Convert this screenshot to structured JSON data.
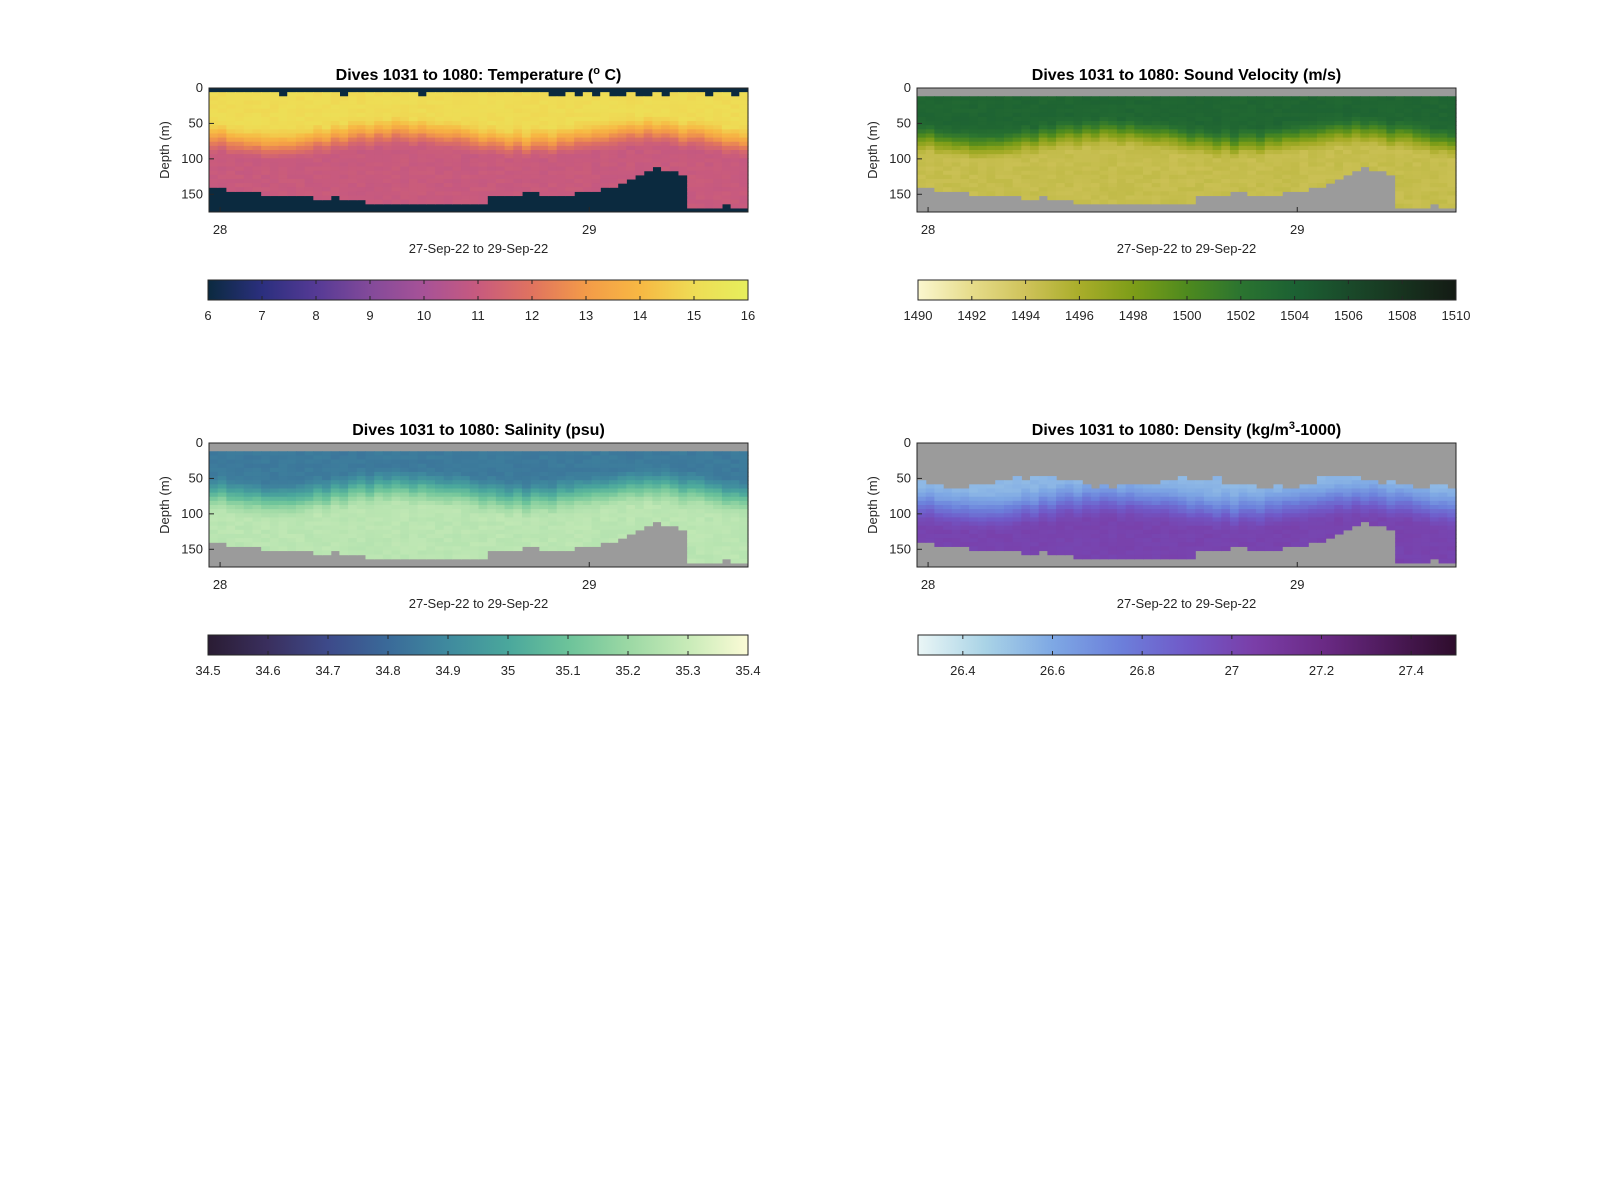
{
  "figure": {
    "background": "#ffffff",
    "mask_color": "#9b9b9b"
  },
  "chart_data": [
    {
      "type": "heatmap",
      "id": "temperature",
      "title": "Dives 1031 to 1080: Temperature (",
      "title_sup": "o",
      "title_end": " C)",
      "ylabel": "Depth (m)",
      "xlabel": "27-Sep-22 to 29-Sep-22",
      "ylim": [
        0,
        175
      ],
      "y_reversed": true,
      "yticks": [
        0,
        50,
        100,
        150
      ],
      "xlim_days": [
        27.97,
        29.43
      ],
      "xticks": [
        {
          "value": 28,
          "label": "28"
        },
        {
          "value": 29,
          "label": "29"
        }
      ],
      "colorbar": {
        "ticks": [
          6,
          7,
          8,
          9,
          10,
          11,
          12,
          13,
          14,
          15,
          16
        ],
        "clim": [
          6,
          16
        ],
        "colors": [
          "#0b2a3f",
          "#2b2f7e",
          "#553a95",
          "#834a9a",
          "#a75297",
          "#c85a7e",
          "#e0735f",
          "#f39b48",
          "#f7b843",
          "#eedc55",
          "#e6ef5c"
        ]
      },
      "mask_fill": "#0b2a3f",
      "profile": {
        "surface": 15.0,
        "thermocline_top": 45,
        "thermocline_bottom": 95,
        "deep": 11.0
      }
    },
    {
      "type": "heatmap",
      "id": "sound_velocity",
      "title": "Dives 1031 to 1080: Sound Velocity (m/s)",
      "ylabel": "Depth (m)",
      "xlabel": "27-Sep-22 to 29-Sep-22",
      "ylim": [
        0,
        175
      ],
      "y_reversed": true,
      "yticks": [
        0,
        50,
        100,
        150
      ],
      "xlim_days": [
        27.97,
        29.43
      ],
      "xticks": [
        {
          "value": 28,
          "label": "28"
        },
        {
          "value": 29,
          "label": "29"
        }
      ],
      "colorbar": {
        "ticks": [
          1490,
          1492,
          1494,
          1496,
          1498,
          1500,
          1502,
          1504,
          1506,
          1508,
          1510
        ],
        "clim": [
          1490,
          1510
        ],
        "colors": [
          "#fbf7cf",
          "#e6dc8a",
          "#cfc35a",
          "#a9ad2a",
          "#7d9d18",
          "#4e8a1e",
          "#2b7430",
          "#1c6133",
          "#1a4a2a",
          "#17331f",
          "#141b14"
        ]
      },
      "mask_fill": "#9b9b9b",
      "profile": {
        "surface": 1503.5,
        "thermocline_top": 45,
        "thermocline_bottom": 95,
        "deep": 1494.5
      }
    },
    {
      "type": "heatmap",
      "id": "salinity",
      "title": "Dives 1031 to 1080: Salinity (psu)",
      "ylabel": "Depth (m)",
      "xlabel": "27-Sep-22 to 29-Sep-22",
      "ylim": [
        0,
        175
      ],
      "y_reversed": true,
      "yticks": [
        0,
        50,
        100,
        150
      ],
      "xlim_days": [
        27.97,
        29.43
      ],
      "xticks": [
        {
          "value": 28,
          "label": "28"
        },
        {
          "value": 29,
          "label": "29"
        }
      ],
      "colorbar": {
        "ticks": [
          34.5,
          34.6,
          34.7,
          34.8,
          34.9,
          35,
          35.1,
          35.2,
          35.3,
          35.4
        ],
        "clim": [
          34.5,
          35.4
        ],
        "colors": [
          "#2a1c33",
          "#3a2f5e",
          "#3d4a8a",
          "#3a6a99",
          "#3f8a9e",
          "#4aa79c",
          "#6cc39a",
          "#9bd8a4",
          "#c8ebb8",
          "#fbfbd6"
        ]
      },
      "mask_fill": "#9b9b9b",
      "profile": {
        "surface": 34.85,
        "thermocline_top": 40,
        "thermocline_bottom": 100,
        "deep": 35.27
      }
    },
    {
      "type": "heatmap",
      "id": "density",
      "title": "Dives 1031 to 1080: Density (kg/m",
      "title_sup": "3",
      "title_end": "-1000)",
      "ylabel": "Depth (m)",
      "xlabel": "27-Sep-22 to 29-Sep-22",
      "ylim": [
        0,
        175
      ],
      "y_reversed": true,
      "yticks": [
        0,
        50,
        100,
        150
      ],
      "xlim_days": [
        27.97,
        29.43
      ],
      "xticks": [
        {
          "value": 28,
          "label": "28"
        },
        {
          "value": 29,
          "label": "29"
        }
      ],
      "colorbar": {
        "ticks": [
          26.4,
          26.6,
          26.8,
          27,
          27.2,
          27.4
        ],
        "clim": [
          26.3,
          27.5
        ],
        "colors": [
          "#eaf6f6",
          "#a9d3e6",
          "#7ea8e4",
          "#6c80db",
          "#7059c8",
          "#7a3ea8",
          "#6b2a86",
          "#4d1a5a",
          "#2e0d2c"
        ]
      },
      "mask_fill": "#9b9b9b",
      "profile": {
        "surface": 26.55,
        "thermocline_top": 55,
        "thermocline_bottom": 120,
        "deep": 27.02
      }
    }
  ]
}
